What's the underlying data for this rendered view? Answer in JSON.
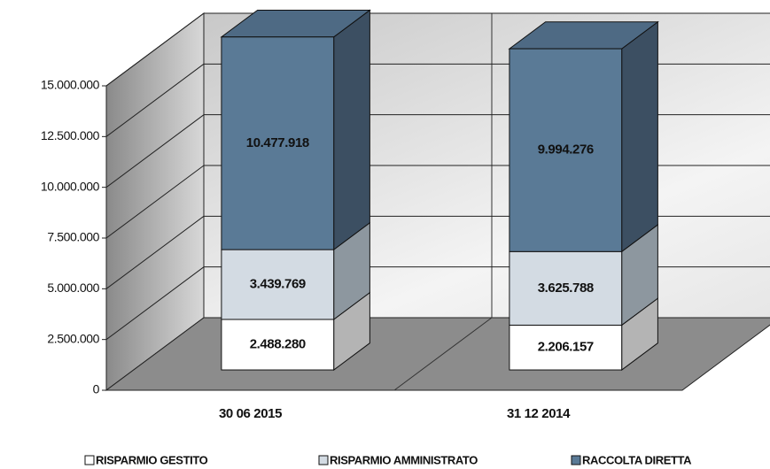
{
  "chart_data": {
    "type": "bar3d_stacked",
    "categories": [
      "30 06 2015",
      "31 12 2014"
    ],
    "series": [
      {
        "name": "RISPARMIO GESTITO",
        "color": "#ffffff",
        "values": [
          2488280,
          2206157
        ],
        "value_labels": [
          "2.488.280",
          "2.206.157"
        ]
      },
      {
        "name": "RISPARMIO AMMINISTRATO",
        "color": "#d3dbe3",
        "values": [
          3439769,
          3625788
        ],
        "value_labels": [
          "3.439.769",
          "3.625.788"
        ]
      },
      {
        "name": "RACCOLTA DIRETTA",
        "color": "#5a7a96",
        "values": [
          10477918,
          9994276
        ],
        "value_labels": [
          "10.477.918",
          "9.994.276"
        ]
      }
    ],
    "ylim": [
      0,
      15000000
    ],
    "yticks": [
      0,
      {
        "value": 2500000,
        "label": "2.500.000"
      },
      {
        "value": 5000000,
        "label": "5.000.000"
      },
      {
        "value": 7500000,
        "label": "7.500.000"
      },
      {
        "value": 10000000,
        "label": "10.000.000"
      },
      {
        "value": 12500000,
        "label": "12.500.000"
      },
      {
        "value": 15000000,
        "label": "15.000.000"
      }
    ],
    "grid": true,
    "legend": "bottom"
  }
}
